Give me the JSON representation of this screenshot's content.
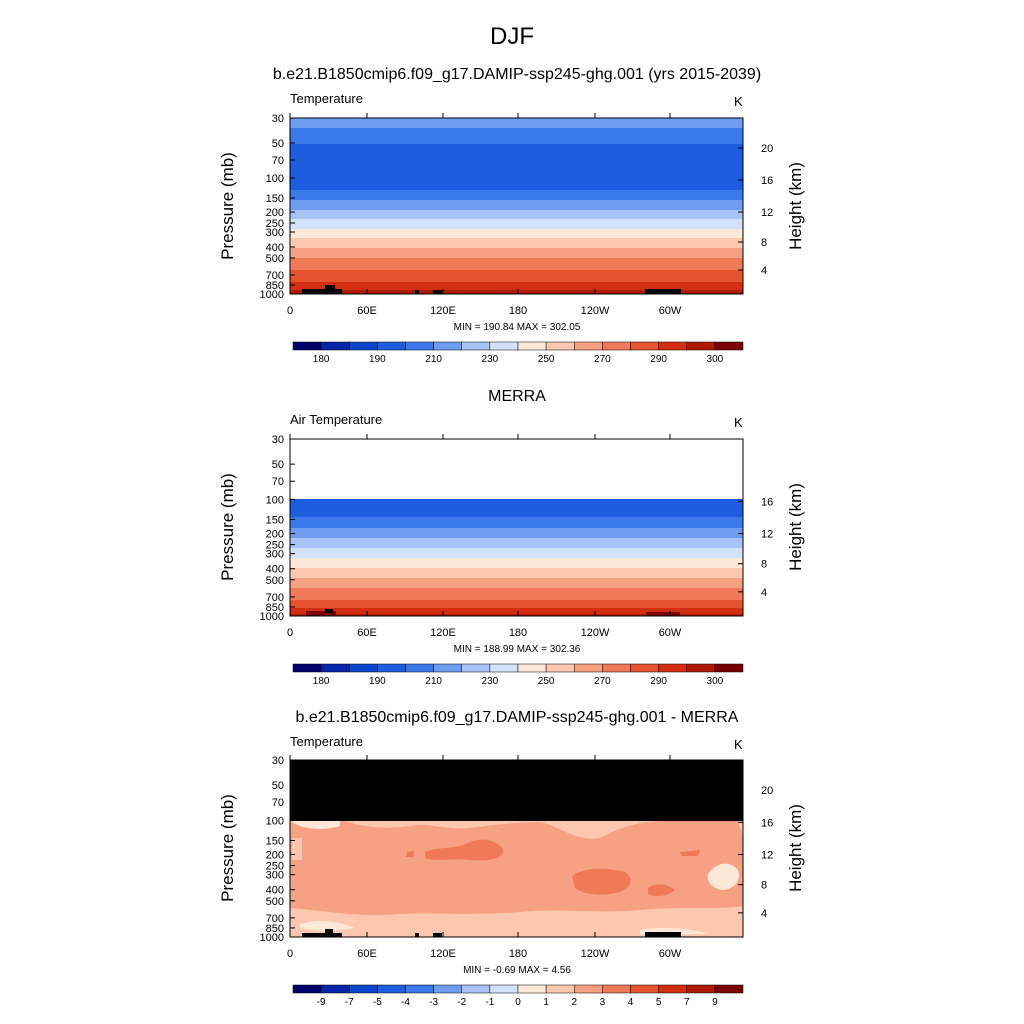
{
  "main_title": "DJF",
  "colors": {
    "temperature_scale": [
      "#00006b",
      "#0526a8",
      "#0a45cc",
      "#1e5ce0",
      "#3a78ec",
      "#6e9cf0",
      "#a8c4f7",
      "#d2e2fb",
      "#fde8d8",
      "#fbc7ae",
      "#f6a184",
      "#f07a58",
      "#e65530",
      "#d12f10",
      "#ae1a06",
      "#7a0000"
    ],
    "difference_scale": [
      "#00006b",
      "#0526a8",
      "#0a45cc",
      "#1e5ce0",
      "#3a78ec",
      "#6e9cf0",
      "#a8c4f7",
      "#d2e2fb",
      "#fde8d8",
      "#fbc7ae",
      "#f6a184",
      "#f07a58",
      "#e65530",
      "#d12f10",
      "#ae1a06",
      "#7a0000"
    ],
    "missing": "#000000",
    "no_data": "#ffffff"
  },
  "chart_data": [
    {
      "type": "heatmap",
      "title": "b.e21.B1850cmip6.f09_g17.DAMIP-ssp245-ghg.001 (yrs 2015-2039)",
      "left_label": "Temperature",
      "units": "K",
      "ylabel": "Pressure (mb)",
      "ylabel_right": "Height (km)",
      "x_ticks": [
        "0",
        "60E",
        "120E",
        "180",
        "120W",
        "60W"
      ],
      "y_ticks": [
        "30",
        "50",
        "70",
        "100",
        "150",
        "200",
        "250",
        "300",
        "400",
        "500",
        "700",
        "850",
        "1000"
      ],
      "y_ticks_right": [
        "20",
        "16",
        "12",
        "8",
        "4"
      ],
      "stats": "MIN = 190.84  MAX = 302.05",
      "colorbar_labels": [
        "180",
        "190",
        "210",
        "230",
        "250",
        "270",
        "290",
        "300"
      ],
      "profile_levels": [
        30,
        50,
        70,
        100,
        150,
        200,
        250,
        300,
        400,
        500,
        700,
        850,
        1000
      ],
      "profile_values": [
        212,
        204,
        198,
        197,
        208,
        218,
        226,
        235,
        248,
        260,
        275,
        285,
        292
      ]
    },
    {
      "type": "heatmap",
      "title": "MERRA",
      "left_label": "Air Temperature",
      "units": "K",
      "ylabel": "Pressure (mb)",
      "ylabel_right": "Height (km)",
      "x_ticks": [
        "0",
        "60E",
        "120E",
        "180",
        "120W",
        "60W"
      ],
      "y_ticks": [
        "30",
        "50",
        "70",
        "100",
        "150",
        "200",
        "250",
        "300",
        "400",
        "500",
        "700",
        "850",
        "1000"
      ],
      "y_ticks_right": [
        "16",
        "12",
        "8",
        "4"
      ],
      "stats": "MIN = 188.99  MAX = 302.36",
      "colorbar_labels": [
        "180",
        "190",
        "210",
        "230",
        "250",
        "270",
        "290",
        "300"
      ],
      "data_top_mb": 100,
      "profile_levels": [
        100,
        150,
        200,
        250,
        300,
        400,
        500,
        700,
        850,
        1000
      ],
      "profile_values": [
        196,
        208,
        218,
        226,
        235,
        248,
        260,
        275,
        285,
        292
      ]
    },
    {
      "type": "heatmap",
      "title": "b.e21.B1850cmip6.f09_g17.DAMIP-ssp245-ghg.001 - MERRA",
      "left_label": "Temperature",
      "units": "K",
      "ylabel": "Pressure (mb)",
      "ylabel_right": "Height (km)",
      "x_ticks": [
        "0",
        "60E",
        "120E",
        "180",
        "120W",
        "60W"
      ],
      "y_ticks": [
        "30",
        "50",
        "70",
        "100",
        "150",
        "200",
        "250",
        "300",
        "400",
        "500",
        "700",
        "850",
        "1000"
      ],
      "y_ticks_right": [
        "20",
        "16",
        "12",
        "8",
        "4"
      ],
      "stats": "MIN =  -0.69  MAX =   4.56",
      "colorbar_labels": [
        "-9",
        "-7",
        "-5",
        "-4",
        "-3",
        "-2",
        "-1",
        "0",
        "1",
        "2",
        "3",
        "4",
        "5",
        "7",
        "9"
      ],
      "missing_above_mb": 100,
      "dominant_value": 2.5
    }
  ]
}
